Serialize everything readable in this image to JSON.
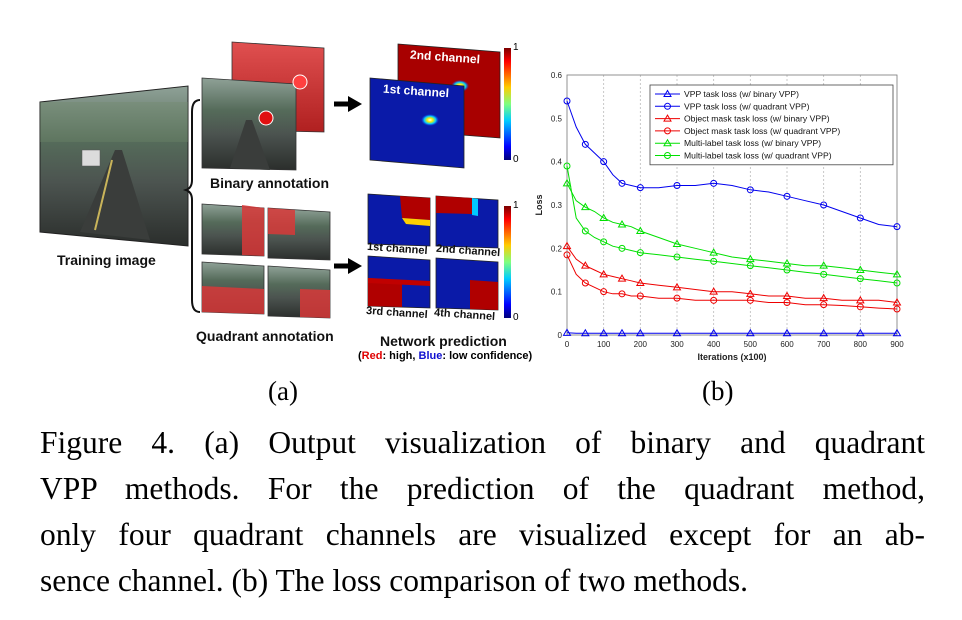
{
  "panel_a": {
    "training_image_label": "Training image",
    "binary_annotation_label": "Binary annotation",
    "quadrant_annotation_label": "Quadrant annotation",
    "network_prediction_label": "Network prediction",
    "confidence_red": "Red",
    "confidence_mid": ": high, ",
    "confidence_blue": "Blue",
    "confidence_end": ": low confidence)",
    "confidence_open": "(",
    "binary_channels": [
      "1st channel",
      "2nd channel"
    ],
    "quadrant_channels": [
      "1st channel",
      "2nd channel",
      "3rd channel",
      "4th channel"
    ],
    "colorbar_max": "1",
    "colorbar_min": "0",
    "colors": {
      "heat_red": "#b00000",
      "heat_blue": "#0a1aa8",
      "red_text": "#e00000",
      "blue_text": "#1010d0"
    }
  },
  "panel_labels": {
    "a": "(a)",
    "b": "(b)"
  },
  "caption": {
    "line1": "Figure 4.  (a) Output visualization of binary and quadrant",
    "line2": "VPP methods.  For the prediction of the quadrant method,",
    "line3": "only four quadrant channels are visualized except for an ab-",
    "line4": "sence channel. (b) The loss comparison of two methods."
  },
  "chart_data": {
    "type": "line",
    "xlabel": "Iterations (x100)",
    "ylabel": "Loss",
    "xlim": [
      0,
      900
    ],
    "ylim": [
      0,
      0.6
    ],
    "xticks": [
      0,
      100,
      200,
      300,
      400,
      500,
      600,
      700,
      800,
      900
    ],
    "yticks": [
      0,
      0.1,
      0.2,
      0.3,
      0.4,
      0.5,
      0.6
    ],
    "grid": "vertical dashed",
    "legend_position": "top-right",
    "x": [
      0,
      25,
      50,
      75,
      100,
      125,
      150,
      175,
      200,
      250,
      300,
      350,
      400,
      450,
      500,
      550,
      600,
      650,
      700,
      750,
      800,
      850,
      900
    ],
    "series": [
      {
        "name": "VPP task loss (w/ binary VPP)",
        "color": "#0000ee",
        "marker": "triangle",
        "values": [
          0.005,
          0.004,
          0.004,
          0.004,
          0.004,
          0.004,
          0.004,
          0.004,
          0.004,
          0.004,
          0.004,
          0.004,
          0.004,
          0.004,
          0.004,
          0.004,
          0.004,
          0.004,
          0.004,
          0.004,
          0.004,
          0.004,
          0.004
        ]
      },
      {
        "name": "VPP task loss (w/ quadrant VPP)",
        "color": "#0000ee",
        "marker": "circle",
        "values": [
          0.54,
          0.48,
          0.44,
          0.42,
          0.4,
          0.37,
          0.35,
          0.345,
          0.34,
          0.34,
          0.345,
          0.345,
          0.35,
          0.345,
          0.335,
          0.33,
          0.32,
          0.31,
          0.3,
          0.285,
          0.27,
          0.255,
          0.25
        ]
      },
      {
        "name": "Object mask task loss (w/ binary VPP)",
        "color": "#ee0000",
        "marker": "triangle",
        "values": [
          0.205,
          0.175,
          0.16,
          0.15,
          0.14,
          0.135,
          0.13,
          0.125,
          0.12,
          0.115,
          0.11,
          0.105,
          0.1,
          0.1,
          0.095,
          0.09,
          0.09,
          0.085,
          0.085,
          0.08,
          0.08,
          0.08,
          0.075
        ]
      },
      {
        "name": "Object mask task loss (w/ quadrant VPP)",
        "color": "#ee0000",
        "marker": "circle",
        "values": [
          0.185,
          0.14,
          0.12,
          0.11,
          0.1,
          0.095,
          0.095,
          0.09,
          0.09,
          0.085,
          0.085,
          0.08,
          0.08,
          0.08,
          0.08,
          0.075,
          0.075,
          0.07,
          0.07,
          0.068,
          0.065,
          0.062,
          0.06
        ]
      },
      {
        "name": "Multi-label task loss (w/ binary VPP)",
        "color": "#00e000",
        "marker": "triangle",
        "values": [
          0.35,
          0.31,
          0.295,
          0.285,
          0.27,
          0.26,
          0.255,
          0.25,
          0.24,
          0.225,
          0.21,
          0.2,
          0.19,
          0.18,
          0.175,
          0.17,
          0.165,
          0.16,
          0.16,
          0.155,
          0.15,
          0.145,
          0.14
        ]
      },
      {
        "name": "Multi-label task loss (w/ quadrant VPP)",
        "color": "#00e000",
        "marker": "circle",
        "values": [
          0.39,
          0.27,
          0.24,
          0.225,
          0.215,
          0.205,
          0.2,
          0.195,
          0.19,
          0.185,
          0.18,
          0.175,
          0.17,
          0.165,
          0.16,
          0.155,
          0.15,
          0.145,
          0.14,
          0.135,
          0.13,
          0.125,
          0.12
        ]
      }
    ]
  }
}
